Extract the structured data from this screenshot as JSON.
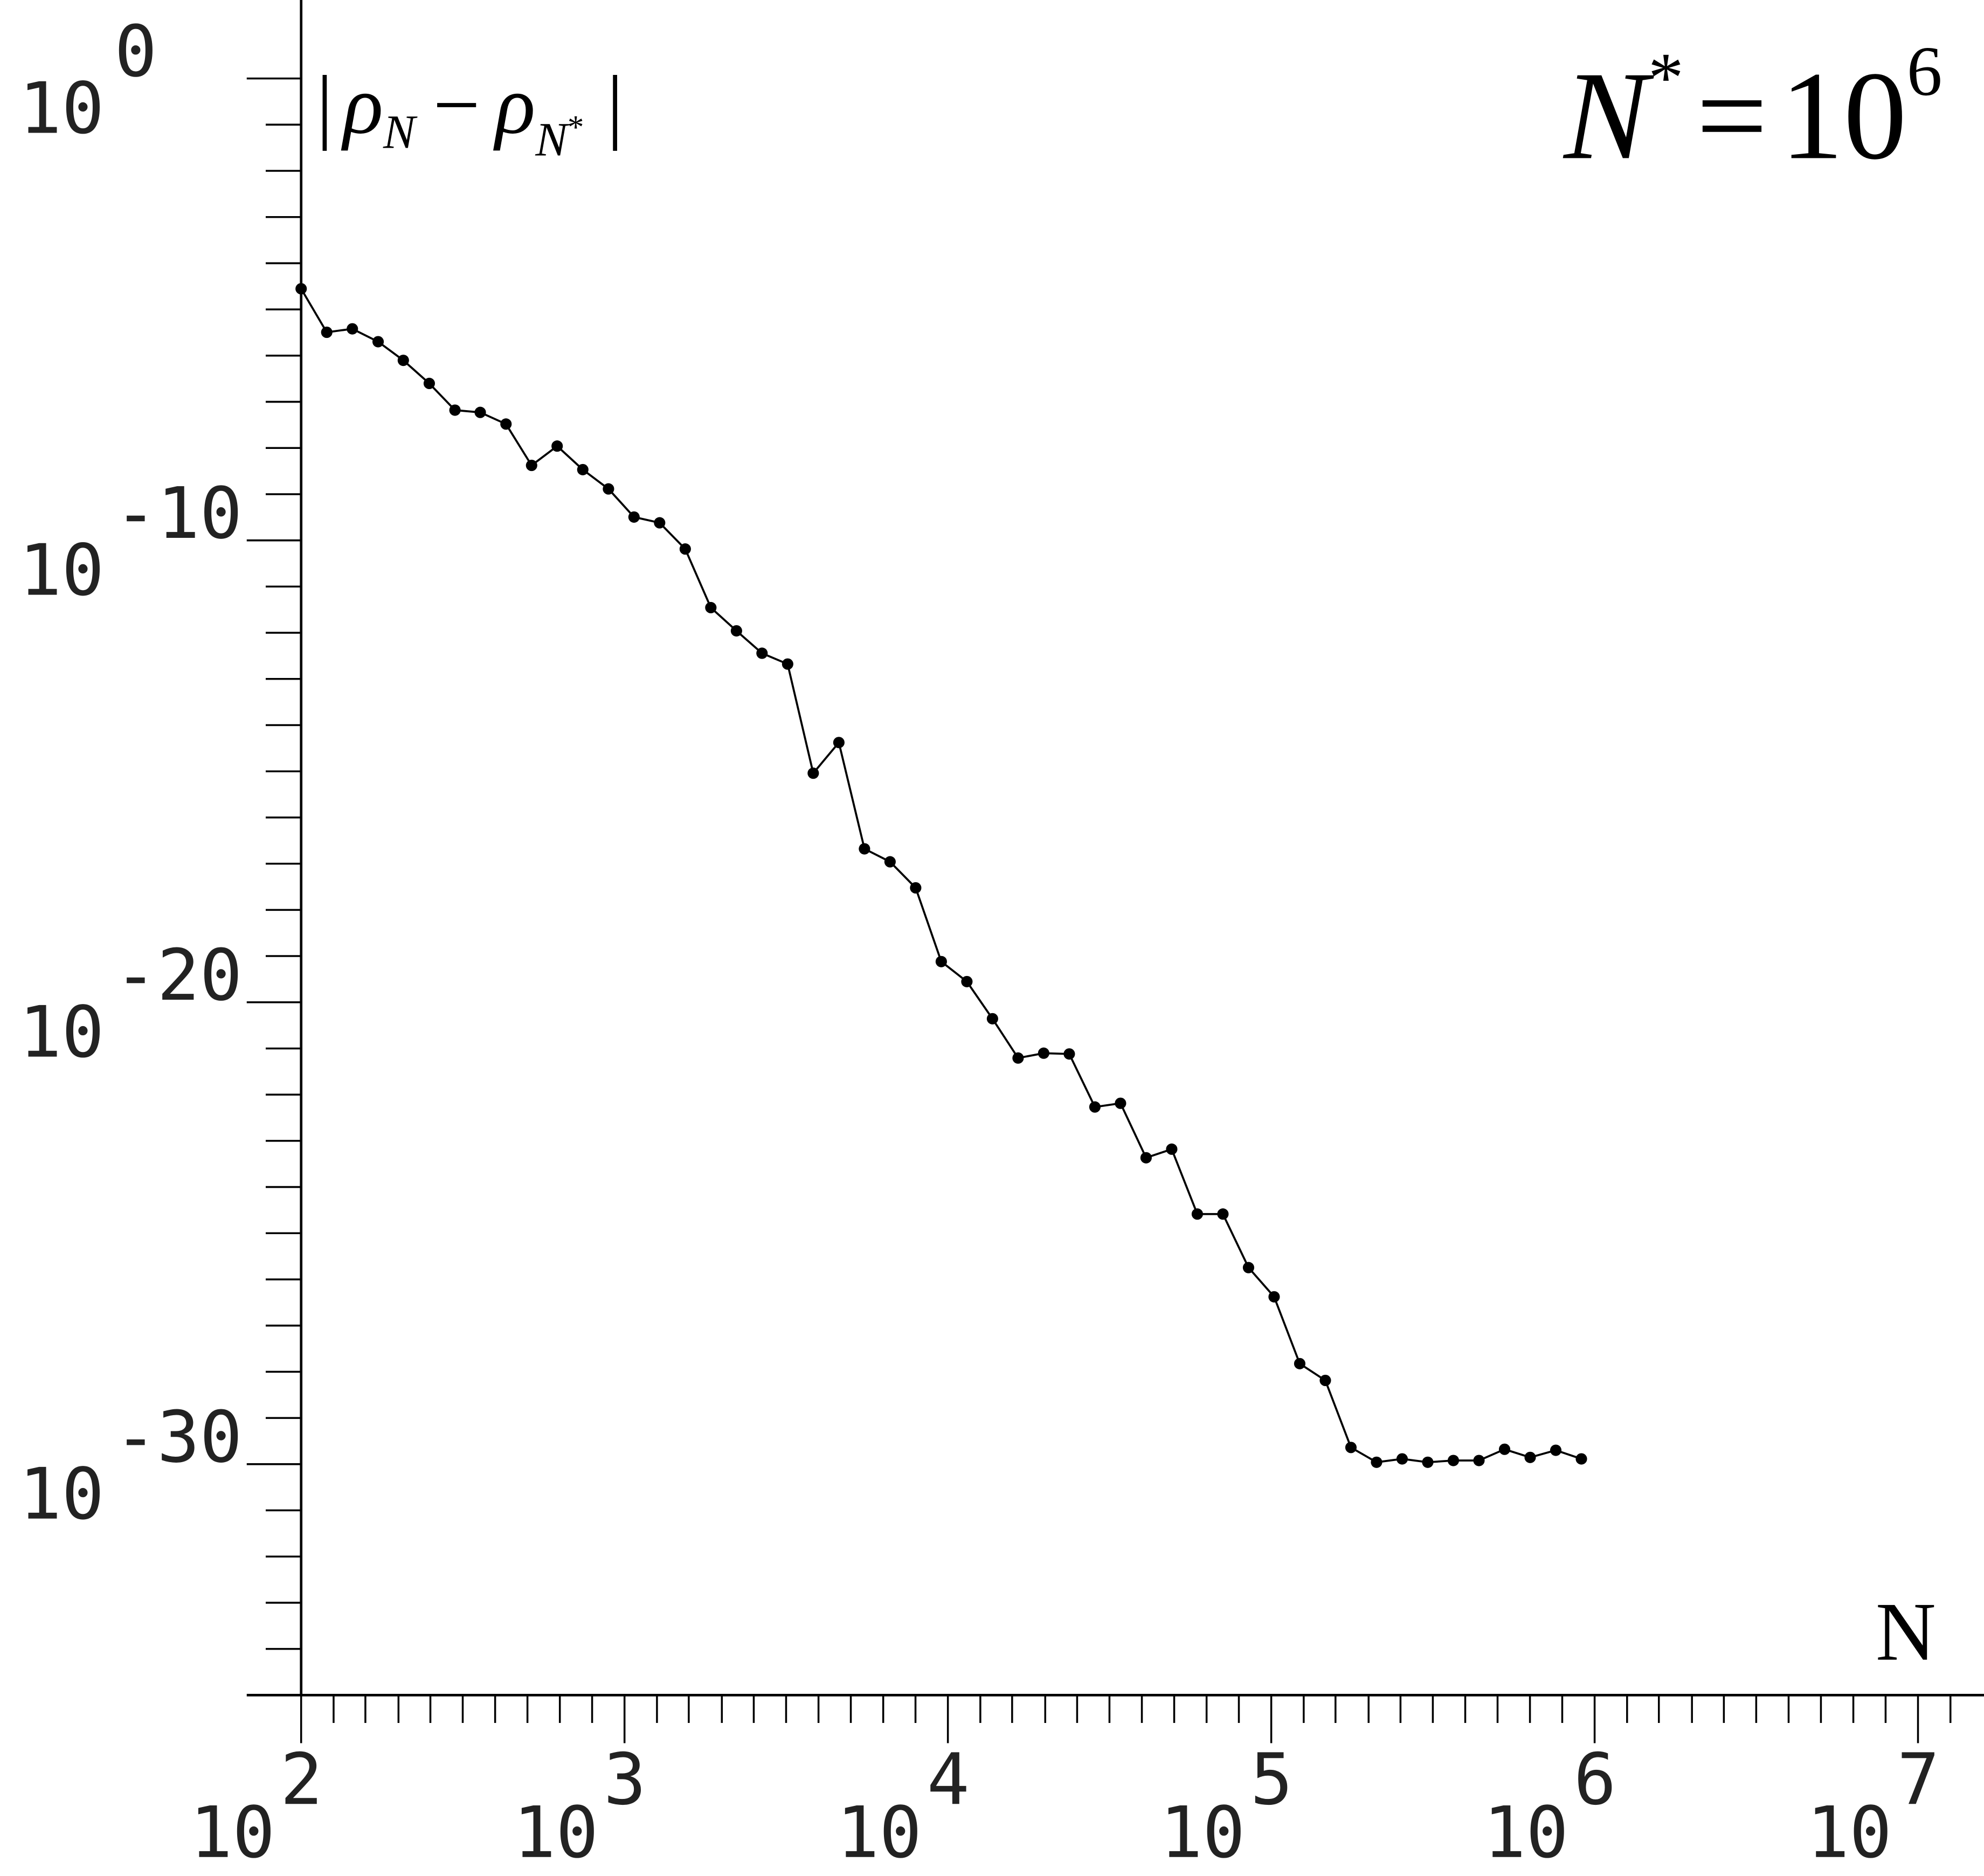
{
  "chart_data": {
    "type": "line",
    "ylabel_parts": [
      "|",
      "ρ",
      "N",
      "−",
      "ρ",
      "N",
      "*",
      "|"
    ],
    "annotation_parts": [
      "N",
      "*",
      "=",
      "10",
      "6"
    ],
    "xlabel": "N",
    "log_x": true,
    "log_y": true,
    "color": "#000000",
    "marker": true,
    "x": [
      100,
      120,
      144,
      173,
      207,
      249,
      299,
      358,
      430,
      516,
      619,
      743,
      892,
      1070,
      1284,
      1541,
      1849,
      2219,
      2662,
      3195,
      3834,
      4601,
      5521,
      6625,
      7950,
      9540,
      11448,
      13737,
      16485,
      19781,
      23738,
      28485,
      34182,
      41019,
      49222,
      59067,
      70880,
      85056,
      102067,
      122481,
      146977,
      176373,
      211647,
      253977,
      304772,
      365726,
      438871,
      526646,
      631975,
      758370,
      910044
    ],
    "values": [
      2.8e-05,
      3.2e-06,
      3.8e-06,
      2e-06,
      7.9e-07,
      2.5e-07,
      6.6e-08,
      5.9e-08,
      3.3e-08,
      4.2e-09,
      1.1e-08,
      3.4e-09,
      1.3e-09,
      3.2e-10,
      2.4e-10,
      6.5e-11,
      3.5e-12,
      1.1e-12,
      3.6e-13,
      2.1e-13,
      9.1e-16,
      4.2e-15,
      2.1e-17,
      1.1e-17,
      3e-18,
      7.6e-20,
      2.8e-20,
      4.4e-21,
      6.2e-22,
      7.9e-22,
      7.6e-22,
      5.4e-23,
      6.5e-23,
      4.3e-24,
      6.6e-24,
      2.6e-25,
      2.6e-25,
      1.8e-26,
      4.2e-27,
      1.5e-28,
      6.5e-29,
      2.3e-30,
      1.1e-30,
      1.3e-30,
      1.1e-30,
      1.2e-30,
      1.2e-30,
      2.1e-30,
      1.4e-30,
      2e-30,
      1.3e-30
    ],
    "xlim": [
      100,
      16000000
    ],
    "ylim": [
      1e-35,
      50
    ],
    "xticks": [
      {
        "value": 100,
        "label": "10",
        "exponent": "2"
      },
      {
        "value": 1000,
        "label": "10",
        "exponent": "3"
      },
      {
        "value": 10000,
        "label": "10",
        "exponent": "4"
      },
      {
        "value": 100000,
        "label": "10",
        "exponent": "5"
      },
      {
        "value": 1000000,
        "label": "10",
        "exponent": "6"
      },
      {
        "value": 10000000,
        "label": "10",
        "exponent": "7"
      }
    ],
    "yticks": [
      {
        "value": 1,
        "label": "10",
        "exponent": "0"
      },
      {
        "value": 1e-10,
        "label": "10",
        "exponent": "-10"
      },
      {
        "value": 1e-20,
        "label": "10",
        "exponent": "-20"
      },
      {
        "value": 1e-30,
        "label": "10",
        "exponent": "-30"
      }
    ],
    "xminorticks": [
      126,
      158,
      200,
      251,
      316,
      398,
      501,
      631,
      794,
      1260,
      1580,
      2000,
      2510,
      3160,
      3980,
      5010,
      6310,
      7940,
      12600,
      15800,
      20000,
      25100,
      31600,
      39800,
      50100,
      63100,
      79400,
      126000,
      158000,
      200000,
      251000,
      316000,
      398000,
      501000,
      631000,
      794000,
      1260000,
      1580000,
      2000000,
      2510000,
      3160000,
      3980000,
      5010000,
      6310000,
      7940000,
      12600000
    ],
    "yminorticks": [
      0.1,
      0.01,
      0.001,
      0.0001,
      1e-05,
      1e-06,
      1e-07,
      1e-08,
      1e-09,
      1e-11,
      1e-12,
      1e-13,
      1e-14,
      1e-15,
      1e-16,
      1e-17,
      1e-18,
      1e-19,
      1e-21,
      1e-22,
      1e-23,
      1e-24,
      1e-25,
      1e-26,
      1e-27,
      1e-28,
      1e-29,
      1e-31,
      1e-32,
      1e-33,
      1e-34
    ]
  }
}
